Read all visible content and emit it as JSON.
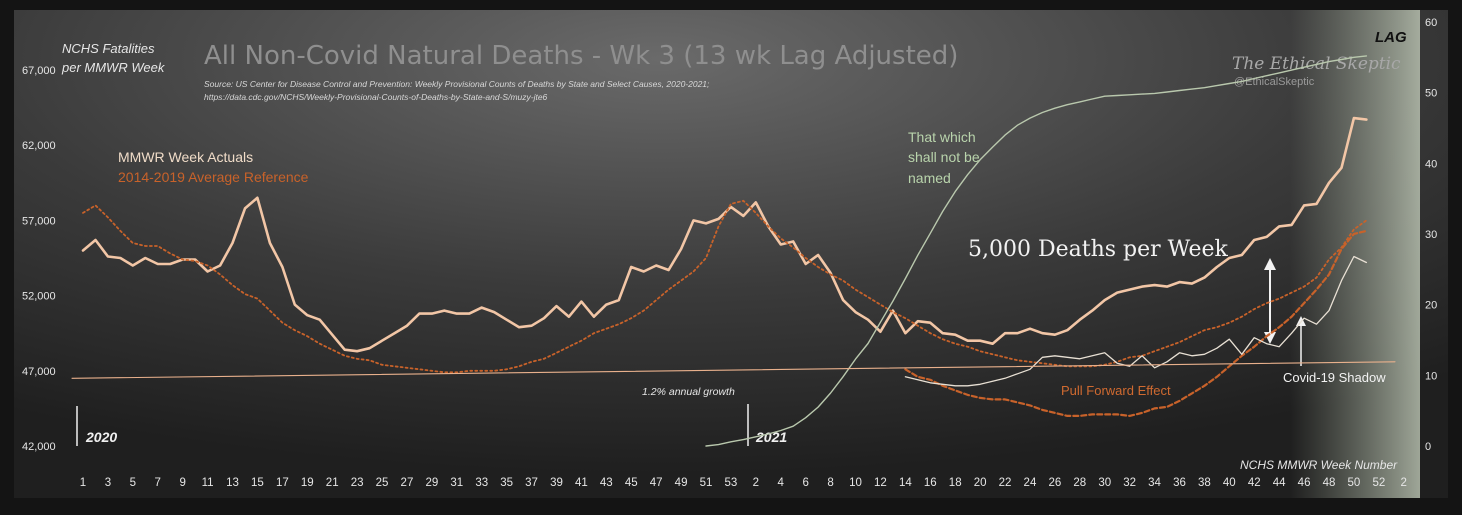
{
  "chart_data": {
    "type": "line",
    "title": "All Non-Covid Natural Deaths - Wk 3 (13 wk Lag Adjusted)",
    "source_line1": "Source: US Center for Disease Control and Prevention: Weekly Provisional Counts of Deaths by State and Select Causes, 2020-2021;",
    "source_line2": "https://data.cdc.gov/NCHS/Weekly-Provisional-Counts-of-Deaths-by-State-and-S/muzy-jte6",
    "ylabel_line1": "NCHS Fatalities",
    "ylabel_line2": "per MMWR Week",
    "xlabel": "NCHS MMWR Week Number",
    "brand_name": "The Ethical Skeptic",
    "brand_handle": "@EthicalSkeptic",
    "lag_label": "LAG",
    "year_labels": [
      "2020",
      "2021"
    ],
    "ylim": [
      42000,
      67000
    ],
    "yticks": [
      "42,000",
      "47,000",
      "52,000",
      "57,000",
      "62,000",
      "67,000"
    ],
    "ylim_right": [
      0,
      60
    ],
    "yticks_right": [
      "0",
      "10",
      "20",
      "30",
      "40",
      "50",
      "60"
    ],
    "xtick_labels": [
      "1",
      "3",
      "5",
      "7",
      "9",
      "11",
      "13",
      "15",
      "17",
      "19",
      "21",
      "23",
      "25",
      "27",
      "29",
      "31",
      "33",
      "35",
      "37",
      "39",
      "41",
      "43",
      "45",
      "47",
      "49",
      "51",
      "53",
      "2",
      "4",
      "6",
      "8",
      "10",
      "12",
      "14",
      "16",
      "18",
      "20",
      "22",
      "24",
      "26",
      "28",
      "30",
      "32",
      "34",
      "36",
      "38",
      "40",
      "42",
      "44",
      "46",
      "48",
      "50",
      "52",
      "2"
    ],
    "annotations": {
      "growth": "1.2% annual growth",
      "gap": "5,000 Deaths per Week",
      "pull_forward": "Pull Forward Effect",
      "shadow": "Covid-19 Shadow",
      "unnamed": [
        "That which",
        "shall not be",
        "named"
      ]
    },
    "series": [
      {
        "name": "MMWR Week Actuals",
        "color": "#f2c6a6",
        "values": [
          55000,
          55700,
          54600,
          54500,
          54000,
          54500,
          54100,
          54100,
          54400,
          54400,
          53600,
          54000,
          55500,
          57800,
          58500,
          55500,
          53900,
          51400,
          50700,
          50400,
          49400,
          48400,
          48300,
          48500,
          49000,
          49500,
          50000,
          50800,
          50800,
          51000,
          50800,
          50800,
          51200,
          50900,
          50400,
          49900,
          50000,
          50500,
          51300,
          50600,
          51600,
          50600,
          51400,
          51700,
          53900,
          53600,
          54000,
          53700,
          55100,
          57000,
          56800,
          57100,
          57900,
          57300,
          58200,
          56600,
          55400,
          55600,
          54100,
          54700,
          53500,
          51700,
          50900,
          50400,
          49600,
          51000,
          49500,
          50300,
          50200,
          49500,
          49400,
          49000,
          49000,
          48800,
          49500,
          49500,
          49800,
          49500,
          49400,
          49700,
          50400,
          51000,
          51700,
          52200,
          52400,
          52600,
          52700,
          52600,
          52900,
          52800,
          53200,
          53900,
          54500,
          54700,
          55700,
          55900,
          56600,
          56700,
          58000,
          58100,
          59500,
          60500,
          63800,
          63700
        ]
      },
      {
        "name": "2014-2019 Average Reference",
        "color": "#c8622a",
        "values": [
          57500,
          58000,
          57200,
          56300,
          55500,
          55300,
          55300,
          54800,
          54400,
          54300,
          54000,
          53400,
          52700,
          52100,
          51800,
          51000,
          50200,
          49700,
          49300,
          48800,
          48400,
          48000,
          47800,
          47700,
          47400,
          47300,
          47200,
          47100,
          47000,
          46900,
          46900,
          47000,
          47000,
          47000,
          47100,
          47300,
          47600,
          47800,
          48200,
          48600,
          49000,
          49500,
          49800,
          50100,
          50500,
          51000,
          51700,
          52400,
          53000,
          53600,
          54500,
          56600,
          58100,
          58300,
          57500,
          56600,
          55800,
          55200,
          54500,
          53900,
          53400,
          53000,
          52400,
          51900,
          51400,
          50900,
          50500,
          50000,
          49500,
          49100,
          48800,
          48600,
          48300,
          48100,
          47900,
          47700,
          47600,
          47500,
          47400,
          47300,
          47300,
          47300,
          47400,
          47600,
          47900,
          48000,
          48300,
          48600,
          48900,
          49300,
          49700,
          49900,
          50200,
          50600,
          51100,
          51500,
          51800,
          52200,
          52600,
          53200,
          54400,
          55200,
          56400,
          57000
        ]
      },
      {
        "name": "Pull Forward Effect",
        "color": "#c8622a",
        "values": [
          null,
          null,
          null,
          null,
          null,
          null,
          null,
          null,
          null,
          null,
          null,
          null,
          null,
          null,
          null,
          null,
          null,
          null,
          null,
          null,
          null,
          null,
          null,
          null,
          null,
          null,
          null,
          null,
          null,
          null,
          null,
          null,
          null,
          null,
          null,
          null,
          null,
          null,
          null,
          null,
          null,
          null,
          null,
          null,
          null,
          null,
          null,
          null,
          null,
          null,
          null,
          null,
          null,
          null,
          null,
          null,
          null,
          null,
          null,
          null,
          null,
          null,
          null,
          null,
          null,
          null,
          47100,
          46600,
          46400,
          46000,
          45700,
          45400,
          45200,
          45100,
          45100,
          44900,
          44700,
          44400,
          44200,
          44000,
          44000,
          44100,
          44100,
          44100,
          44000,
          44200,
          44500,
          44600,
          45000,
          45500,
          46000,
          46600,
          47300,
          48000,
          48600,
          49300,
          49900,
          50600,
          51500,
          52400,
          53400,
          55100,
          56100,
          56300
        ]
      },
      {
        "name": "Covid-19 Shadow",
        "color": "#e8e0d4",
        "values": [
          null,
          null,
          null,
          null,
          null,
          null,
          null,
          null,
          null,
          null,
          null,
          null,
          null,
          null,
          null,
          null,
          null,
          null,
          null,
          null,
          null,
          null,
          null,
          null,
          null,
          null,
          null,
          null,
          null,
          null,
          null,
          null,
          null,
          null,
          null,
          null,
          null,
          null,
          null,
          null,
          null,
          null,
          null,
          null,
          null,
          null,
          null,
          null,
          null,
          null,
          null,
          null,
          null,
          null,
          null,
          null,
          null,
          null,
          null,
          null,
          null,
          null,
          null,
          null,
          null,
          null,
          46600,
          46400,
          46200,
          46100,
          46000,
          46000,
          46100,
          46300,
          46500,
          46800,
          47100,
          47900,
          48000,
          47900,
          47800,
          48000,
          48200,
          47500,
          47300,
          48000,
          47200,
          47600,
          48200,
          48000,
          48100,
          48500,
          49100,
          48100,
          49200,
          48800,
          48600,
          49500,
          50500,
          50100,
          51000,
          53000,
          54600,
          54200
        ]
      },
      {
        "name": "That which shall not be named",
        "axis": "right",
        "color": "#b9c8ad",
        "values": [
          null,
          null,
          null,
          null,
          null,
          null,
          null,
          null,
          null,
          null,
          null,
          null,
          null,
          null,
          null,
          null,
          null,
          null,
          null,
          null,
          null,
          null,
          null,
          null,
          null,
          null,
          null,
          null,
          null,
          null,
          null,
          null,
          null,
          null,
          null,
          null,
          null,
          null,
          null,
          null,
          null,
          null,
          null,
          null,
          null,
          null,
          null,
          null,
          null,
          null,
          0,
          0.2,
          0.6,
          0.9,
          1.3,
          1.7,
          2.2,
          2.8,
          4.0,
          5.5,
          7.5,
          9.8,
          12.3,
          14.5,
          17.5,
          20.5,
          23.7,
          27.0,
          30.1,
          33.2,
          36.0,
          38.4,
          40.5,
          42.3,
          44.0,
          45.4,
          46.4,
          47.2,
          47.8,
          48.3,
          48.7,
          49.1,
          49.5,
          49.6,
          49.7,
          49.8,
          49.9,
          50.1,
          50.3,
          50.5,
          50.7,
          51.0,
          51.3,
          51.6,
          52.0,
          52.4,
          52.8,
          53.2,
          53.6,
          54.0,
          54.4,
          54.7,
          55.0,
          55.2
        ]
      },
      {
        "name": "1.2% annual growth",
        "color": "#e8b08c",
        "values": [
          46500,
          47600
        ]
      }
    ]
  }
}
